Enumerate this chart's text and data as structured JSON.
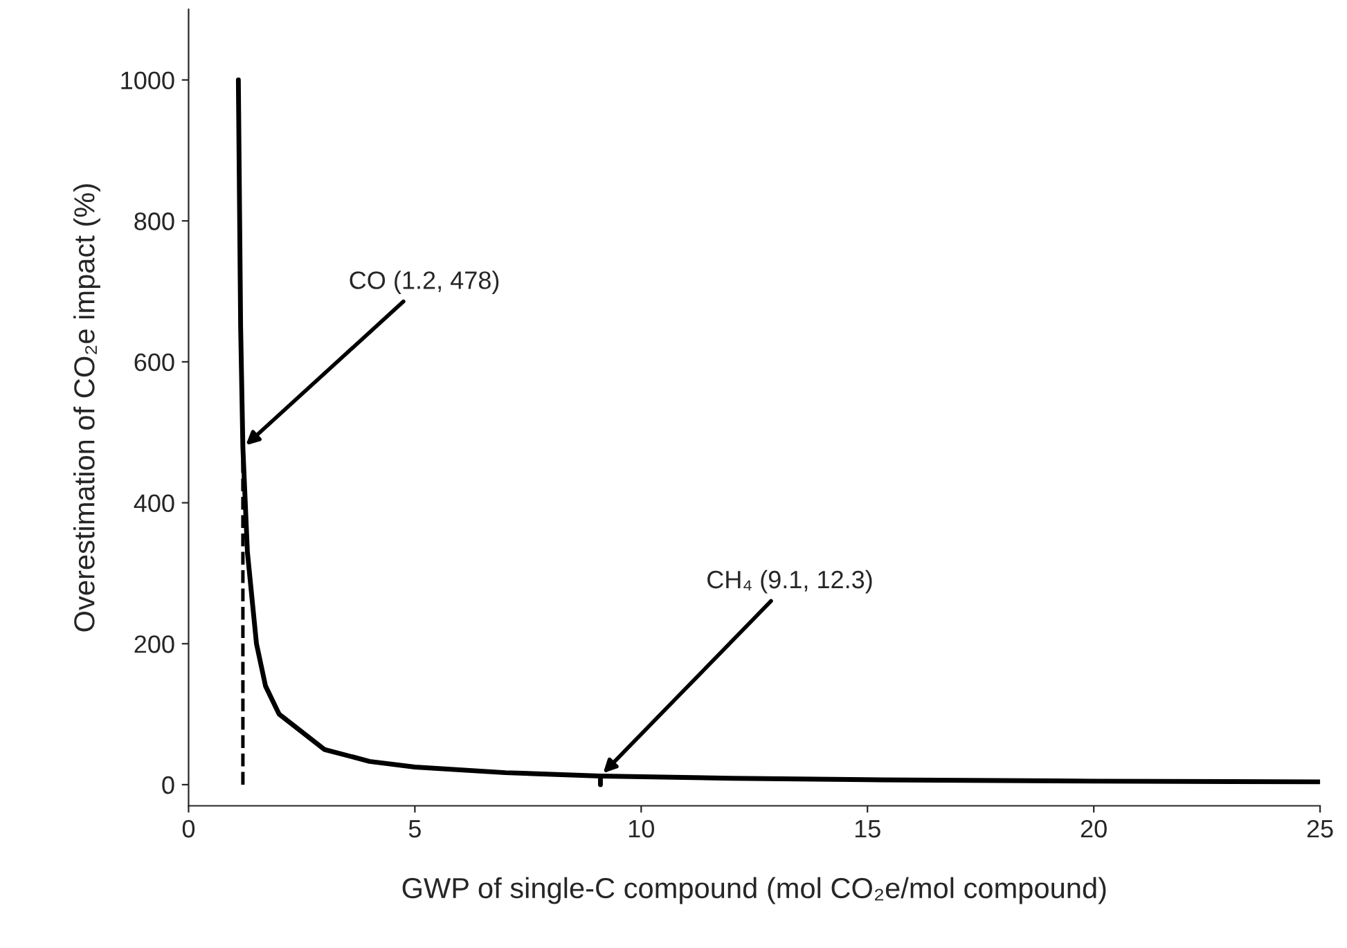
{
  "chart_data": {
    "type": "line",
    "xlabel": "GWP of single-C compound (mol CO₂e/mol compound)",
    "ylabel": "Overestimation of CO₂e impact (%)",
    "series": [
      {
        "color": "#000000",
        "x": [
          1.1,
          1.15,
          1.2,
          1.3,
          1.5,
          1.7,
          2,
          3,
          4,
          5,
          7,
          9.1,
          12,
          15,
          20,
          25
        ],
        "values": [
          1000,
          650,
          478,
          330,
          200,
          140,
          100,
          50,
          33,
          25,
          17,
          12.3,
          9,
          7,
          5,
          4
        ]
      },
      {
        "color": "#000000",
        "line_style": "dashed",
        "x": [
          1.2,
          1.2
        ],
        "values": [
          0,
          478
        ]
      },
      {
        "color": "#000000",
        "x": [
          9.1,
          9.1
        ],
        "values": [
          0,
          12.3
        ]
      }
    ],
    "annotations": [
      {
        "text": "CO (1.2, 478)",
        "x": 1.2,
        "y": 478
      },
      {
        "text": "CH₄ (9.1, 12.3)",
        "x": 9.1,
        "y": 12.3
      }
    ],
    "xlim": [
      0,
      25
    ],
    "xticks": [
      0,
      5,
      10,
      15,
      20,
      25
    ],
    "ylim": [
      -30,
      1100
    ],
    "yticks": [
      0,
      200,
      400,
      600,
      800,
      1000
    ],
    "grid": false,
    "legend": false,
    "marker": "none",
    "line_style": "solid"
  }
}
